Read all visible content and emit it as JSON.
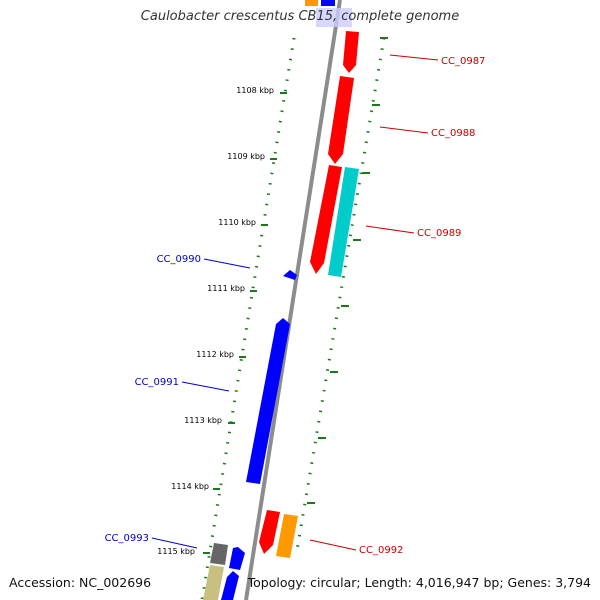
{
  "title": "Caulobacter crescentus CB15, complete genome",
  "footer": {
    "accession": "Accession: NC_002696",
    "summary": "Topology: circular; Length: 4,016,947 bp; Genes: 3,794"
  },
  "colors": {
    "backbone": "#8c8c8c",
    "tick": "#1a7a1a",
    "forward_label": "#cc0000",
    "reverse_label": "#0000cc",
    "red_gene": "#ff0000",
    "blue_gene": "#0000ff",
    "cyan_gene": "#00cccc",
    "orange_gene": "#ff9900",
    "gray_gene": "#666666",
    "khaki_gene": "#c8c080"
  },
  "kbp_labels": [
    "1108 kbp",
    "1109 kbp",
    "1110 kbp",
    "1111 kbp",
    "1112 kbp",
    "1113 kbp",
    "1114 kbp",
    "1115 kbp"
  ],
  "gene_labels": {
    "CC_0987": "CC_0987",
    "CC_0988": "CC_0988",
    "CC_0989": "CC_0989",
    "CC_0990": "CC_0990",
    "CC_0991": "CC_0991",
    "CC_0992": "CC_0992",
    "CC_0993": "CC_0993"
  }
}
